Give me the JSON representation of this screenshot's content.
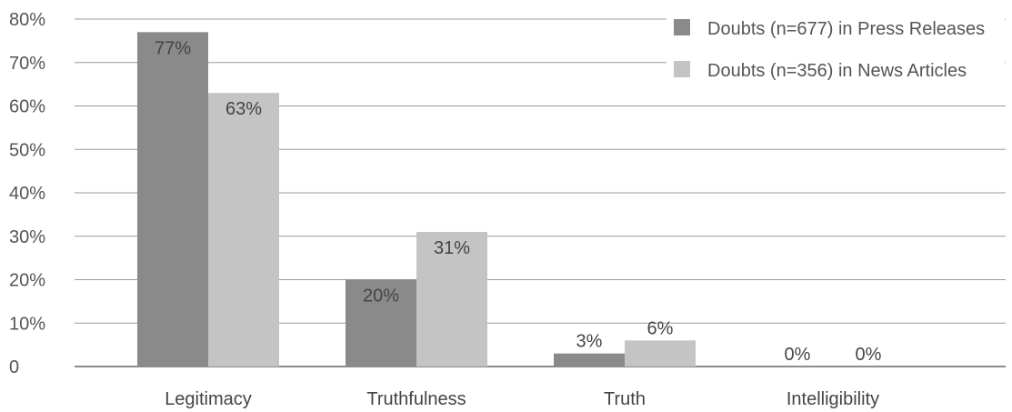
{
  "chart_data": {
    "type": "bar",
    "categories": [
      "Legitimacy",
      "Truthfulness",
      "Truth",
      "Intelligibility"
    ],
    "series": [
      {
        "name": "Doubts (n=677) in Press Releases",
        "values": [
          77,
          20,
          3,
          0
        ],
        "labels": [
          "77%",
          "20%",
          "3%",
          "0%"
        ],
        "color": "#8a8a8a"
      },
      {
        "name": "Doubts (n=356) in News Articles",
        "values": [
          63,
          31,
          6,
          0
        ],
        "labels": [
          "63%",
          "31%",
          "6%",
          "0%"
        ],
        "color": "#c4c4c4"
      }
    ],
    "yticks": [
      "0",
      "10%",
      "20%",
      "30%",
      "40%",
      "50%",
      "60%",
      "70%",
      "80%"
    ],
    "ylim": [
      0,
      80
    ],
    "grid": true,
    "legend_position": "top-right",
    "title": "",
    "xlabel": "",
    "ylabel": ""
  }
}
